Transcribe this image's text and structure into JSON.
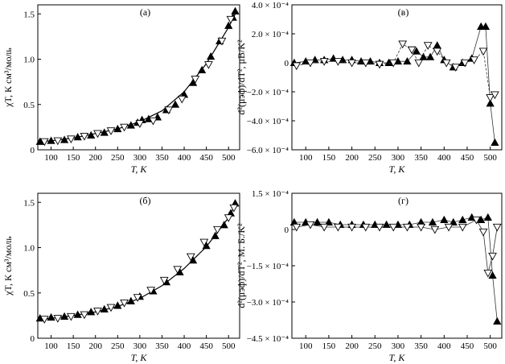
{
  "chart_data": [
    {
      "type": "scatter",
      "panel_label": "(а)",
      "xlabel": "T, K",
      "ylabel": "χT, К см³/моль",
      "xlim": [
        70,
        525
      ],
      "ylim": [
        0,
        1.6
      ],
      "xticks": [
        100,
        150,
        200,
        250,
        300,
        350,
        400,
        450,
        500
      ],
      "yticks": [
        {
          "v": 0,
          "label": "0"
        },
        {
          "v": 0.5,
          "label": "0.5"
        },
        {
          "v": 1.0,
          "label": "1.0"
        },
        {
          "v": 1.5,
          "label": "1.5"
        }
      ],
      "fit": {
        "x": [
          75,
          100,
          150,
          200,
          250,
          300,
          350,
          400,
          450,
          500,
          515
        ],
        "y": [
          0.09,
          0.1,
          0.13,
          0.18,
          0.23,
          0.31,
          0.43,
          0.64,
          0.95,
          1.35,
          1.5
        ]
      },
      "series": [
        {
          "marker": "filled-triangle-up",
          "x": [
            75,
            100,
            130,
            160,
            190,
            220,
            250,
            280,
            295,
            305,
            320,
            340,
            360,
            380,
            400,
            420,
            440,
            460,
            480,
            500,
            510,
            515
          ],
          "y": [
            0.09,
            0.1,
            0.11,
            0.14,
            0.16,
            0.19,
            0.23,
            0.27,
            0.3,
            0.33,
            0.34,
            0.36,
            0.44,
            0.5,
            0.61,
            0.74,
            0.88,
            1.03,
            1.2,
            1.37,
            1.46,
            1.53
          ]
        },
        {
          "marker": "open-triangle-down",
          "x": [
            85,
            115,
            145,
            175,
            205,
            235,
            265,
            300,
            330,
            365,
            395,
            425,
            455,
            485,
            505
          ],
          "y": [
            0.09,
            0.1,
            0.12,
            0.15,
            0.18,
            0.21,
            0.25,
            0.29,
            0.32,
            0.44,
            0.56,
            0.78,
            0.94,
            1.2,
            1.44
          ]
        }
      ]
    },
    {
      "type": "line",
      "panel_label": "(в)",
      "xlabel": "T, K",
      "ylabel": "d²(μэф)/dT², μB/K²",
      "xlim": [
        70,
        525
      ],
      "ylim": [
        -0.0006,
        0.0004
      ],
      "xticks": [
        100,
        150,
        200,
        250,
        300,
        350,
        400,
        450,
        500
      ],
      "yticks": [
        {
          "v": 0.0004,
          "label": "4.0 × 10⁻⁴"
        },
        {
          "v": 0.0002,
          "label": "2.0 × 10⁻⁴"
        },
        {
          "v": 0,
          "label": "0"
        },
        {
          "v": -0.0002,
          "label": "−2.0 × 10⁻⁴"
        },
        {
          "v": -0.0004,
          "label": "−4.0 × 10⁻⁴"
        },
        {
          "v": -0.0006,
          "label": "−6.0 × 10⁻⁴"
        }
      ],
      "series": [
        {
          "marker": "filled-triangle-up",
          "line": "solid",
          "x": [
            75,
            100,
            120,
            140,
            160,
            180,
            200,
            220,
            240,
            260,
            280,
            300,
            320,
            340,
            355,
            370,
            385,
            400,
            420,
            440,
            460,
            480,
            490,
            500,
            510
          ],
          "y": [
            0.0,
            1e-05,
            2e-05,
            2e-05,
            3e-05,
            2e-05,
            2e-05,
            1e-05,
            1e-05,
            0.0,
            0.0,
            1e-05,
            1e-05,
            8e-05,
            4e-05,
            4e-05,
            0.00012,
            2e-05,
            -3e-05,
            0.0,
            3e-05,
            0.00025,
            0.00025,
            -0.00028,
            -0.00055
          ]
        },
        {
          "marker": "open-triangle-down",
          "line": "dashed",
          "x": [
            80,
            110,
            140,
            170,
            200,
            230,
            260,
            290,
            310,
            330,
            345,
            365,
            385,
            405,
            425,
            445,
            465,
            485,
            500,
            510
          ],
          "y": [
            -2e-05,
            0.0,
            1e-05,
            1e-05,
            0.0,
            0.0,
            -1e-05,
            0.0,
            0.00013,
            9e-05,
            0.0,
            0.00012,
            8e-05,
            0.0,
            -3e-05,
            0.0,
            2e-05,
            8e-05,
            -0.00024,
            -0.00022
          ]
        }
      ]
    },
    {
      "type": "scatter",
      "panel_label": "(б)",
      "xlabel": "T, K",
      "ylabel": "χT, К см³/моль",
      "xlim": [
        70,
        525
      ],
      "ylim": [
        0,
        1.6
      ],
      "xticks": [
        100,
        150,
        200,
        250,
        300,
        350,
        400,
        450,
        500
      ],
      "yticks": [
        {
          "v": 0,
          "label": "0"
        },
        {
          "v": 0.5,
          "label": "0.5"
        },
        {
          "v": 1.0,
          "label": "1.0"
        },
        {
          "v": 1.5,
          "label": "1.5"
        }
      ],
      "fit": {
        "x": [
          75,
          100,
          150,
          200,
          250,
          300,
          350,
          400,
          450,
          500,
          515
        ],
        "y": [
          0.21,
          0.22,
          0.25,
          0.29,
          0.35,
          0.44,
          0.58,
          0.77,
          1.01,
          1.33,
          1.47
        ]
      },
      "series": [
        {
          "marker": "filled-triangle-up",
          "x": [
            75,
            100,
            130,
            160,
            190,
            220,
            250,
            280,
            300,
            330,
            360,
            390,
            420,
            450,
            470,
            490,
            505,
            515
          ],
          "y": [
            0.22,
            0.23,
            0.24,
            0.26,
            0.29,
            0.32,
            0.36,
            0.41,
            0.46,
            0.52,
            0.62,
            0.73,
            0.86,
            1.02,
            1.13,
            1.25,
            1.38,
            1.49
          ]
        },
        {
          "marker": "open-triangle-down",
          "x": [
            85,
            115,
            145,
            175,
            205,
            235,
            265,
            295,
            325,
            355,
            385,
            415,
            445,
            475,
            500,
            512
          ],
          "y": [
            0.21,
            0.22,
            0.24,
            0.26,
            0.3,
            0.34,
            0.39,
            0.45,
            0.53,
            0.64,
            0.76,
            0.9,
            1.06,
            1.2,
            1.33,
            1.44
          ]
        }
      ]
    },
    {
      "type": "line",
      "panel_label": "(г)",
      "xlabel": "T, K",
      "ylabel": "d²(μэф)/dT², М. Б./K²",
      "xlim": [
        70,
        525
      ],
      "ylim": [
        -0.00045,
        0.00015
      ],
      "xticks": [
        100,
        150,
        200,
        250,
        300,
        350,
        400,
        450,
        500
      ],
      "yticks": [
        {
          "v": 0.00015,
          "label": "1.5 × 10⁻⁴"
        },
        {
          "v": 0,
          "label": "0"
        },
        {
          "v": -0.00015,
          "label": "−1.5 × 10⁻⁴"
        },
        {
          "v": -0.0003,
          "label": "−3.0 × 10⁻⁴"
        },
        {
          "v": -0.00045,
          "label": "−4.5 × 10⁻⁴"
        }
      ],
      "series": [
        {
          "marker": "filled-triangle-up",
          "line": "solid",
          "x": [
            75,
            100,
            125,
            150,
            175,
            200,
            225,
            250,
            275,
            300,
            325,
            350,
            375,
            400,
            420,
            440,
            460,
            480,
            495,
            505,
            515
          ],
          "y": [
            3e-05,
            3e-05,
            3e-05,
            3e-05,
            2e-05,
            2e-05,
            2e-05,
            2e-05,
            2e-05,
            2e-05,
            2e-05,
            3e-05,
            3e-05,
            4e-05,
            3e-05,
            4e-05,
            5e-05,
            4e-05,
            5e-05,
            -0.00019,
            -0.00038
          ]
        },
        {
          "marker": "open-triangle-down",
          "line": "solid",
          "x": [
            80,
            110,
            140,
            170,
            200,
            230,
            260,
            290,
            320,
            350,
            380,
            410,
            440,
            470,
            485,
            495,
            505,
            515
          ],
          "y": [
            1e-05,
            2e-05,
            1e-05,
            1e-05,
            1e-05,
            1e-05,
            1e-05,
            1e-05,
            1e-05,
            1e-05,
            0.0,
            1e-05,
            1e-05,
            4e-05,
            -1e-05,
            -0.00018,
            -0.00011,
            1e-05
          ]
        }
      ]
    }
  ]
}
